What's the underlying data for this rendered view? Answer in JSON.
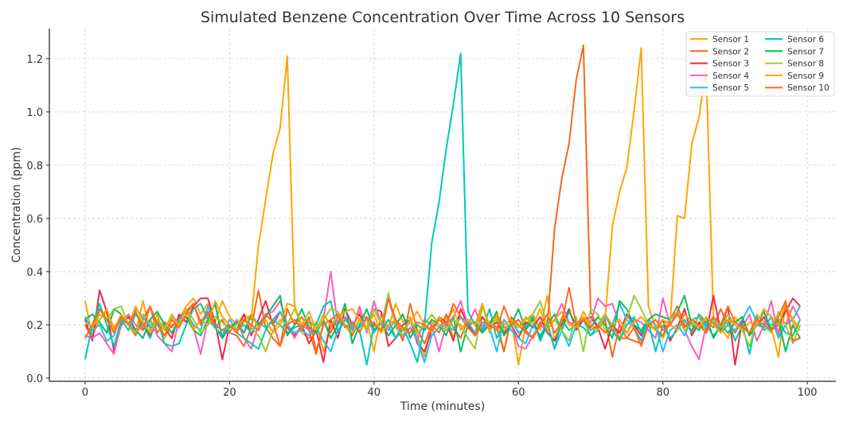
{
  "chart_data": {
    "type": "line",
    "title": "Simulated Benzene Concentration Over Time Across 10 Sensors",
    "xlabel": "Time (minutes)",
    "ylabel": "Concentration (ppm)",
    "xlim": [
      -4.95,
      103.95
    ],
    "ylim": [
      -0.012,
      1.313
    ],
    "xticks": [
      0,
      20,
      40,
      60,
      80,
      100
    ],
    "xtick_labels": [
      "0",
      "20",
      "40",
      "60",
      "80",
      "100"
    ],
    "yticks": [
      0,
      0.2,
      0.4,
      0.6,
      0.8,
      1.0,
      1.2
    ],
    "ytick_labels": [
      "0.0",
      "0.2",
      "0.4",
      "0.6",
      "0.8",
      "1.0",
      "1.2"
    ],
    "grid": true,
    "legend_position": "top-right",
    "x_start": 0,
    "x_step": 1,
    "series": [
      {
        "name": "Sensor 1",
        "color": "#FFA500",
        "values": [
          0.29,
          0.16,
          0.22,
          0.25,
          0.19,
          0.23,
          0.21,
          0.17,
          0.29,
          0.18,
          0.24,
          0.15,
          0.2,
          0.22,
          0.27,
          0.3,
          0.24,
          0.28,
          0.21,
          0.29,
          0.23,
          0.2,
          0.24,
          0.22,
          0.5,
          0.67,
          0.84,
          0.94,
          1.21,
          0.28,
          0.17,
          0.15,
          0.21,
          0.1,
          0.19,
          0.23,
          0.2,
          0.18,
          0.25,
          0.22,
          0.1,
          0.24,
          0.19,
          0.28,
          0.21,
          0.23,
          0.16,
          0.08,
          0.21,
          0.19,
          0.23,
          0.15,
          0.26,
          0.2,
          0.17,
          0.28,
          0.19,
          0.23,
          0.1,
          0.22,
          0.05,
          0.2,
          0.24,
          0.18,
          0.31,
          0.14,
          0.23,
          0.21,
          0.19,
          0.25,
          0.2,
          0.18,
          0.22,
          0.57,
          0.7,
          0.79,
          1.0,
          1.24,
          0.27,
          0.19,
          0.15,
          0.21,
          0.61,
          0.6,
          0.88,
          0.98,
          1.17,
          0.22,
          0.19,
          0.15,
          0.23,
          0.2,
          0.17,
          0.24,
          0.21,
          0.19,
          0.08,
          0.28,
          0.21,
          0.18
        ]
      },
      {
        "name": "Sensor 2",
        "color": "#F26A1F",
        "values": [
          0.2,
          0.15,
          0.26,
          0.22,
          0.18,
          0.24,
          0.2,
          0.16,
          0.22,
          0.27,
          0.17,
          0.21,
          0.19,
          0.23,
          0.25,
          0.28,
          0.2,
          0.24,
          0.19,
          0.22,
          0.17,
          0.16,
          0.12,
          0.19,
          0.33,
          0.19,
          0.15,
          0.12,
          0.26,
          0.2,
          0.23,
          0.18,
          0.09,
          0.21,
          0.17,
          0.23,
          0.2,
          0.16,
          0.22,
          0.19,
          0.21,
          0.17,
          0.3,
          0.2,
          0.14,
          0.28,
          0.18,
          0.13,
          0.2,
          0.17,
          0.24,
          0.19,
          0.15,
          0.22,
          0.2,
          0.17,
          0.21,
          0.19,
          0.1,
          0.23,
          0.2,
          0.17,
          0.15,
          0.21,
          0.2,
          0.56,
          0.75,
          0.88,
          1.12,
          1.25,
          0.25,
          0.19,
          0.22,
          0.08,
          0.2,
          0.15,
          0.14,
          0.13,
          0.2,
          0.18,
          0.16,
          0.22,
          0.27,
          0.2,
          0.18,
          0.24,
          0.21,
          0.19,
          0.26,
          0.2,
          0.17,
          0.22,
          0.16,
          0.2,
          0.19,
          0.23,
          0.17,
          0.28,
          0.14,
          0.15
        ]
      },
      {
        "name": "Sensor 3",
        "color": "#F0284A",
        "values": [
          0.22,
          0.14,
          0.33,
          0.25,
          0.1,
          0.2,
          0.23,
          0.18,
          0.21,
          0.16,
          0.22,
          0.19,
          0.15,
          0.24,
          0.21,
          0.27,
          0.3,
          0.3,
          0.21,
          0.07,
          0.2,
          0.18,
          0.24,
          0.16,
          0.22,
          0.29,
          0.2,
          0.25,
          0.19,
          0.16,
          0.2,
          0.13,
          0.18,
          0.06,
          0.22,
          0.15,
          0.26,
          0.2,
          0.24,
          0.18,
          0.26,
          0.25,
          0.12,
          0.15,
          0.2,
          0.22,
          0.13,
          0.1,
          0.18,
          0.23,
          0.21,
          0.14,
          0.26,
          0.2,
          0.16,
          0.23,
          0.19,
          0.21,
          0.17,
          0.2,
          0.15,
          0.21,
          0.19,
          0.23,
          0.17,
          0.14,
          0.2,
          0.26,
          0.18,
          0.22,
          0.23,
          0.19,
          0.11,
          0.2,
          0.17,
          0.24,
          0.2,
          0.16,
          0.21,
          0.18,
          0.22,
          0.14,
          0.19,
          0.26,
          0.16,
          0.21,
          0.17,
          0.31,
          0.18,
          0.27,
          0.05,
          0.22,
          0.16,
          0.2,
          0.23,
          0.18,
          0.2,
          0.25,
          0.3,
          0.27
        ]
      },
      {
        "name": "Sensor 4",
        "color": "#FF5CBE",
        "values": [
          0.16,
          0.15,
          0.17,
          0.13,
          0.09,
          0.21,
          0.24,
          0.2,
          0.18,
          0.22,
          0.16,
          0.13,
          0.1,
          0.22,
          0.25,
          0.19,
          0.09,
          0.22,
          0.2,
          0.18,
          0.17,
          0.22,
          0.15,
          0.11,
          0.2,
          0.24,
          0.25,
          0.29,
          0.2,
          0.15,
          0.2,
          0.18,
          0.17,
          0.22,
          0.4,
          0.2,
          0.23,
          0.18,
          0.27,
          0.17,
          0.29,
          0.2,
          0.18,
          0.22,
          0.15,
          0.19,
          0.14,
          0.22,
          0.2,
          0.1,
          0.2,
          0.23,
          0.29,
          0.2,
          0.26,
          0.18,
          0.21,
          0.24,
          0.19,
          0.2,
          0.12,
          0.11,
          0.16,
          0.2,
          0.18,
          0.22,
          0.28,
          0.21,
          0.2,
          0.23,
          0.21,
          0.3,
          0.27,
          0.28,
          0.2,
          0.17,
          0.22,
          0.21,
          0.18,
          0.15,
          0.3,
          0.2,
          0.25,
          0.18,
          0.12,
          0.07,
          0.2,
          0.23,
          0.17,
          0.22,
          0.21,
          0.19,
          0.24,
          0.14,
          0.2,
          0.29,
          0.16,
          0.2,
          0.27,
          0.22
        ]
      },
      {
        "name": "Sensor 5",
        "color": "#1EBFFF",
        "values": [
          0.23,
          0.18,
          0.2,
          0.14,
          0.16,
          0.24,
          0.2,
          0.26,
          0.23,
          0.19,
          0.21,
          0.2,
          0.17,
          0.22,
          0.25,
          0.2,
          0.18,
          0.27,
          0.19,
          0.16,
          0.22,
          0.18,
          0.2,
          0.17,
          0.21,
          0.19,
          0.22,
          0.25,
          0.2,
          0.17,
          0.18,
          0.16,
          0.19,
          0.14,
          0.1,
          0.18,
          0.22,
          0.2,
          0.19,
          0.23,
          0.17,
          0.21,
          0.19,
          0.15,
          0.18,
          0.22,
          0.14,
          0.06,
          0.16,
          0.19,
          0.2,
          0.18,
          0.23,
          0.21,
          0.17,
          0.2,
          0.19,
          0.1,
          0.22,
          0.18,
          0.15,
          0.13,
          0.2,
          0.16,
          0.21,
          0.11,
          0.18,
          0.12,
          0.2,
          0.22,
          0.16,
          0.18,
          0.23,
          0.2,
          0.28,
          0.22,
          0.19,
          0.14,
          0.22,
          0.2,
          0.1,
          0.18,
          0.2,
          0.16,
          0.22,
          0.23,
          0.19,
          0.21,
          0.17,
          0.2,
          0.18,
          0.22,
          0.27,
          0.21,
          0.19,
          0.23,
          0.15,
          0.2,
          0.22,
          0.27
        ]
      },
      {
        "name": "Sensor 6",
        "color": "#00C9B8",
        "values": [
          0.07,
          0.2,
          0.28,
          0.2,
          0.12,
          0.22,
          0.18,
          0.24,
          0.2,
          0.15,
          0.22,
          0.13,
          0.12,
          0.13,
          0.2,
          0.26,
          0.28,
          0.22,
          0.19,
          0.15,
          0.2,
          0.17,
          0.15,
          0.13,
          0.11,
          0.18,
          0.22,
          0.2,
          0.17,
          0.19,
          0.2,
          0.21,
          0.2,
          0.27,
          0.29,
          0.17,
          0.22,
          0.19,
          0.18,
          0.05,
          0.2,
          0.18,
          0.22,
          0.15,
          0.19,
          0.13,
          0.06,
          0.2,
          0.51,
          0.66,
          0.86,
          1.03,
          1.22,
          0.25,
          0.2,
          0.18,
          0.26,
          0.15,
          0.2,
          0.22,
          0.17,
          0.19,
          0.23,
          0.14,
          0.2,
          0.11,
          0.22,
          0.18,
          0.2,
          0.19,
          0.16,
          0.2,
          0.24,
          0.18,
          0.14,
          0.2,
          0.23,
          0.17,
          0.21,
          0.1,
          0.2,
          0.15,
          0.18,
          0.22,
          0.17,
          0.24,
          0.2,
          0.16,
          0.19,
          0.22,
          0.14,
          0.2,
          0.09,
          0.23,
          0.18,
          0.2,
          0.21,
          0.17,
          0.16,
          0.22
        ]
      },
      {
        "name": "Sensor 7",
        "color": "#00C060",
        "values": [
          0.22,
          0.24,
          0.21,
          0.17,
          0.26,
          0.24,
          0.2,
          0.18,
          0.15,
          0.22,
          0.25,
          0.2,
          0.17,
          0.21,
          0.23,
          0.18,
          0.16,
          0.22,
          0.28,
          0.15,
          0.19,
          0.21,
          0.17,
          0.24,
          0.2,
          0.23,
          0.27,
          0.31,
          0.16,
          0.2,
          0.26,
          0.19,
          0.17,
          0.22,
          0.15,
          0.2,
          0.28,
          0.13,
          0.2,
          0.26,
          0.18,
          0.21,
          0.16,
          0.2,
          0.24,
          0.15,
          0.2,
          0.18,
          0.22,
          0.2,
          0.16,
          0.23,
          0.1,
          0.2,
          0.21,
          0.17,
          0.2,
          0.25,
          0.16,
          0.2,
          0.26,
          0.18,
          0.22,
          0.15,
          0.2,
          0.24,
          0.18,
          0.25,
          0.2,
          0.22,
          0.19,
          0.23,
          0.2,
          0.15,
          0.29,
          0.26,
          0.2,
          0.18,
          0.22,
          0.24,
          0.23,
          0.22,
          0.25,
          0.31,
          0.2,
          0.18,
          0.23,
          0.15,
          0.2,
          0.17,
          0.21,
          0.23,
          0.16,
          0.2,
          0.25,
          0.18,
          0.22,
          0.1,
          0.2,
          0.15
        ]
      },
      {
        "name": "Sensor 8",
        "color": "#9ACD32",
        "values": [
          0.21,
          0.19,
          0.24,
          0.22,
          0.26,
          0.27,
          0.2,
          0.17,
          0.24,
          0.2,
          0.22,
          0.18,
          0.24,
          0.2,
          0.26,
          0.22,
          0.17,
          0.2,
          0.23,
          0.21,
          0.18,
          0.2,
          0.22,
          0.19,
          0.16,
          0.1,
          0.18,
          0.22,
          0.2,
          0.26,
          0.2,
          0.25,
          0.18,
          0.22,
          0.26,
          0.25,
          0.2,
          0.17,
          0.22,
          0.18,
          0.26,
          0.2,
          0.32,
          0.19,
          0.16,
          0.22,
          0.17,
          0.2,
          0.24,
          0.2,
          0.18,
          0.22,
          0.2,
          0.15,
          0.11,
          0.27,
          0.2,
          0.22,
          0.18,
          0.21,
          0.19,
          0.22,
          0.24,
          0.29,
          0.2,
          0.22,
          0.18,
          0.14,
          0.23,
          0.1,
          0.26,
          0.24,
          0.18,
          0.2,
          0.15,
          0.22,
          0.31,
          0.26,
          0.2,
          0.18,
          0.2,
          0.22,
          0.25,
          0.18,
          0.2,
          0.23,
          0.17,
          0.22,
          0.19,
          0.24,
          0.2,
          0.18,
          0.12,
          0.22,
          0.2,
          0.17,
          0.25,
          0.2,
          0.13,
          0.2
        ]
      },
      {
        "name": "Sensor 9",
        "color": "#FFA500",
        "values": [
          0.15,
          0.2,
          0.22,
          0.26,
          0.18,
          0.24,
          0.2,
          0.27,
          0.21,
          0.17,
          0.22,
          0.19,
          0.23,
          0.2,
          0.26,
          0.18,
          0.22,
          0.2,
          0.29,
          0.23,
          0.2,
          0.18,
          0.21,
          0.24,
          0.19,
          0.22,
          0.17,
          0.2,
          0.28,
          0.27,
          0.2,
          0.22,
          0.18,
          0.24,
          0.2,
          0.23,
          0.25,
          0.26,
          0.22,
          0.19,
          0.24,
          0.17,
          0.2,
          0.22,
          0.18,
          0.21,
          0.25,
          0.2,
          0.17,
          0.23,
          0.2,
          0.26,
          0.18,
          0.22,
          0.2,
          0.28,
          0.17,
          0.24,
          0.2,
          0.22,
          0.19,
          0.23,
          0.2,
          0.26,
          0.18,
          0.22,
          0.25,
          0.2,
          0.19,
          0.23,
          0.2,
          0.18,
          0.24,
          0.2,
          0.22,
          0.17,
          0.21,
          0.23,
          0.2,
          0.19,
          0.22,
          0.2,
          0.18,
          0.24,
          0.21,
          0.19,
          0.23,
          0.2,
          0.17,
          0.22,
          0.2,
          0.18,
          0.21,
          0.2,
          0.26,
          0.23,
          0.2,
          0.28,
          0.22,
          0.19
        ]
      },
      {
        "name": "Sensor 10",
        "color": "#FF6A20",
        "values": [
          0.15,
          0.2,
          0.26,
          0.22,
          0.17,
          0.23,
          0.2,
          0.25,
          0.18,
          0.27,
          0.2,
          0.16,
          0.22,
          0.19,
          0.24,
          0.28,
          0.21,
          0.25,
          0.2,
          0.18,
          0.2,
          0.17,
          0.22,
          0.2,
          0.18,
          0.24,
          0.21,
          0.12,
          0.2,
          0.22,
          0.18,
          0.23,
          0.1,
          0.2,
          0.22,
          0.24,
          0.19,
          0.21,
          0.17,
          0.23,
          0.2,
          0.18,
          0.3,
          0.22,
          0.19,
          0.17,
          0.21,
          0.2,
          0.18,
          0.22,
          0.2,
          0.28,
          0.23,
          0.19,
          0.16,
          0.21,
          0.2,
          0.18,
          0.27,
          0.2,
          0.22,
          0.18,
          0.15,
          0.2,
          0.24,
          0.17,
          0.21,
          0.34,
          0.2,
          0.22,
          0.18,
          0.2,
          0.17,
          0.2,
          0.15,
          0.15,
          0.19,
          0.12,
          0.2,
          0.22,
          0.18,
          0.2,
          0.24,
          0.19,
          0.22,
          0.2,
          0.17,
          0.23,
          0.2,
          0.27,
          0.21,
          0.19,
          0.17,
          0.22,
          0.2,
          0.18,
          0.23,
          0.29,
          0.14,
          0.15
        ]
      }
    ]
  }
}
